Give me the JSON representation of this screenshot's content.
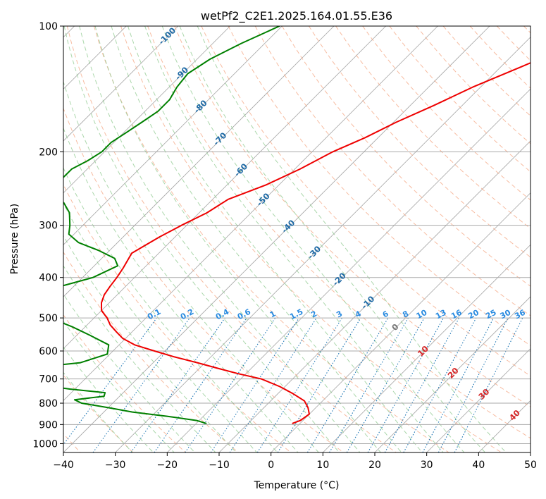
{
  "chart_data": {
    "type": "skew-t",
    "title": "wetPf2_C2E1.2025.164.01.55.E36",
    "xlabel": "Temperature (°C)",
    "ylabel": "Pressure (hPa)",
    "xlim": [
      -40,
      50
    ],
    "ylim": [
      1050,
      100
    ],
    "y_scale": "log",
    "grid": true,
    "x_ticks": [
      "−40",
      "−30",
      "−20",
      "−10",
      "0",
      "10",
      "20",
      "30",
      "40",
      "50"
    ],
    "y_ticks": [
      "100",
      "200",
      "300",
      "400",
      "500",
      "600",
      "700",
      "800",
      "900",
      "1000"
    ],
    "colors": {
      "temperature": "#ee0000",
      "dewpoint": "#008000",
      "dry_adiabat": "#f4a582",
      "moist_adiabat": "#8fc98f",
      "mixing_ratio": "#1f77b4",
      "isotherm": "#888888",
      "isotherm_label": "#1f6aa5",
      "isotherm_label_warm": "#d62728",
      "mixing_label": "#2a8be0",
      "adiabat_label": "#777777"
    },
    "isotherm_labels": [
      "-100",
      "-90",
      "-80",
      "-70",
      "-60",
      "-50",
      "-40",
      "-30",
      "-20",
      "-10",
      "0",
      "10",
      "20",
      "30",
      "40"
    ],
    "mixing_ratio_labels": [
      "0.1",
      "0.2",
      "0.4",
      "0.6",
      "1",
      "1.5",
      "2",
      "3",
      "4",
      "6",
      "8",
      "10",
      "13",
      "16",
      "20",
      "25",
      "30",
      "36"
    ],
    "series": [
      {
        "name": "Temperature",
        "points": [
          [
            100,
            -15.0
          ],
          [
            110,
            -20.0
          ],
          [
            125,
            -26.0
          ],
          [
            140,
            -31.5
          ],
          [
            155,
            -35.5
          ],
          [
            170,
            -39.5
          ],
          [
            185,
            -42.5
          ],
          [
            200,
            -46.0
          ],
          [
            220,
            -49.0
          ],
          [
            240,
            -52.5
          ],
          [
            260,
            -57.0
          ],
          [
            280,
            -58.5
          ],
          [
            300,
            -61.0
          ],
          [
            320,
            -63.0
          ],
          [
            350,
            -65.2
          ],
          [
            380,
            -64.0
          ],
          [
            400,
            -63.4
          ],
          [
            420,
            -63.0
          ],
          [
            440,
            -62.5
          ],
          [
            460,
            -61.5
          ],
          [
            480,
            -60.0
          ],
          [
            500,
            -57.5
          ],
          [
            520,
            -55.5
          ],
          [
            540,
            -53.0
          ],
          [
            560,
            -50.5
          ],
          [
            580,
            -47.0
          ],
          [
            600,
            -42.0
          ],
          [
            620,
            -37.0
          ],
          [
            640,
            -31.5
          ],
          [
            660,
            -26.5
          ],
          [
            680,
            -21.5
          ],
          [
            700,
            -16.0
          ],
          [
            730,
            -11.0
          ],
          [
            760,
            -7.0
          ],
          [
            790,
            -3.5
          ],
          [
            820,
            -1.5
          ],
          [
            850,
            0.0
          ],
          [
            880,
            -0.5
          ],
          [
            895,
            -1.5
          ]
        ]
      },
      {
        "name": "Dewpoint",
        "points": [
          [
            100,
            -80.5
          ],
          [
            110,
            -84.5
          ],
          [
            120,
            -87.5
          ],
          [
            130,
            -89.0
          ],
          [
            140,
            -88.5
          ],
          [
            150,
            -87.5
          ],
          [
            160,
            -87.5
          ],
          [
            170,
            -88.5
          ],
          [
            180,
            -89.5
          ],
          [
            190,
            -90.5
          ],
          [
            200,
            -90.5
          ],
          [
            210,
            -91.5
          ],
          [
            220,
            -93.0
          ],
          [
            235,
            -93.0
          ],
          [
            250,
            -92.0
          ],
          [
            265,
            -88.0
          ],
          [
            280,
            -85.0
          ],
          [
            300,
            -82.5
          ],
          [
            315,
            -81.0
          ],
          [
            330,
            -77.5
          ],
          [
            345,
            -72.0
          ],
          [
            360,
            -67.5
          ],
          [
            375,
            -65.5
          ],
          [
            400,
            -68.0
          ],
          [
            420,
            -72.5
          ],
          [
            440,
            -73.0
          ],
          [
            460,
            -72.0
          ],
          [
            480,
            -71.0
          ],
          [
            500,
            -68.5
          ],
          [
            525,
            -62.5
          ],
          [
            550,
            -57.5
          ],
          [
            580,
            -52.0
          ],
          [
            610,
            -50.5
          ],
          [
            640,
            -54.0
          ],
          [
            655,
            -61.0
          ],
          [
            670,
            -66.5
          ],
          [
            680,
            -67.0
          ],
          [
            700,
            -62.0
          ],
          [
            720,
            -59.0
          ],
          [
            740,
            -51.0
          ],
          [
            755,
            -43.5
          ],
          [
            770,
            -43.0
          ],
          [
            785,
            -48.0
          ],
          [
            800,
            -46.0
          ],
          [
            820,
            -40.0
          ],
          [
            840,
            -34.5
          ],
          [
            860,
            -27.0
          ],
          [
            880,
            -20.5
          ],
          [
            895,
            -18.0
          ]
        ]
      }
    ]
  }
}
